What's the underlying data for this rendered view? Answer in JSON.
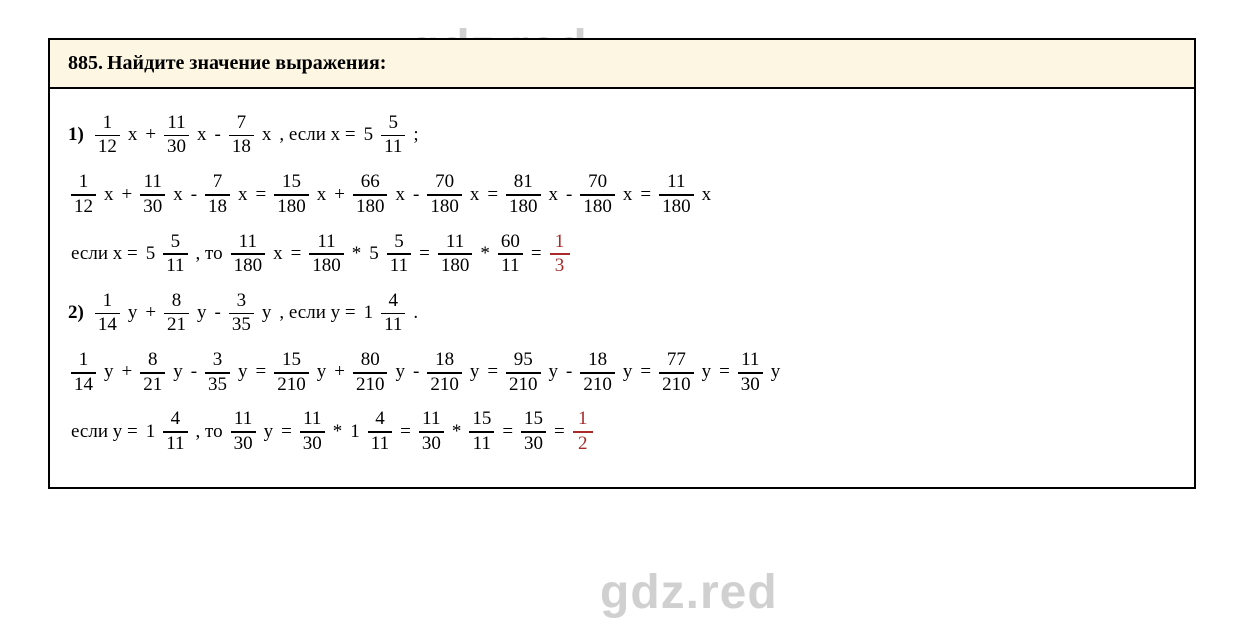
{
  "watermark": "gdz.red",
  "header": {
    "number": "885.",
    "text": "Найдите значение выражения:"
  },
  "colors": {
    "header_bg": "#fdf6e3",
    "border": "#000000",
    "text": "#000000",
    "answer": "#a82a2a",
    "watermark": "rgba(120,120,120,0.35)"
  },
  "problem1": {
    "label": "1)",
    "expr": {
      "f1": {
        "n": "1",
        "d": "12"
      },
      "v1": "x",
      "op1": "+",
      "f2": {
        "n": "11",
        "d": "30"
      },
      "v2": "x",
      "op2": "-",
      "f3": {
        "n": "7",
        "d": "18"
      },
      "v3": "x",
      "cond_prefix": ", если x = ",
      "cond_int": "5",
      "cond_frac": {
        "n": "5",
        "d": "11"
      },
      "semi": ";"
    },
    "simplify": {
      "lhs": [
        {
          "n": "1",
          "d": "12",
          "v": "x"
        },
        {
          "op": "+"
        },
        {
          "n": "11",
          "d": "30",
          "v": "x"
        },
        {
          "op": "-"
        },
        {
          "n": "7",
          "d": "18",
          "v": "x"
        }
      ],
      "eq1": "=",
      "mid": [
        {
          "n": "15",
          "d": "180",
          "v": "x"
        },
        {
          "op": "+"
        },
        {
          "n": "66",
          "d": "180",
          "v": "x"
        },
        {
          "op": "-"
        },
        {
          "n": "70",
          "d": "180",
          "v": "x"
        }
      ],
      "eq2": "=",
      "mid2": [
        {
          "n": "81",
          "d": "180",
          "v": "x"
        },
        {
          "op": "-"
        },
        {
          "n": "70",
          "d": "180",
          "v": "x"
        }
      ],
      "eq3": "=",
      "res": {
        "n": "11",
        "d": "180",
        "v": "x"
      }
    },
    "substitute": {
      "prefix": "если x = ",
      "int": "5",
      "frac": {
        "n": "5",
        "d": "11"
      },
      "then": ", то ",
      "f1": {
        "n": "11",
        "d": "180"
      },
      "v1": "x",
      "eq1": "=",
      "f2": {
        "n": "11",
        "d": "180"
      },
      "star1": "*",
      "int2": "5",
      "f3": {
        "n": "5",
        "d": "11"
      },
      "eq2": "=",
      "f4": {
        "n": "11",
        "d": "180"
      },
      "star2": "*",
      "f5": {
        "n": "60",
        "d": "11"
      },
      "eq3": "=",
      "ans": {
        "n": "1",
        "d": "3"
      }
    }
  },
  "problem2": {
    "label": "2)",
    "expr": {
      "f1": {
        "n": "1",
        "d": "14"
      },
      "v1": "y",
      "op1": "+",
      "f2": {
        "n": "8",
        "d": "21"
      },
      "v2": "y",
      "op2": "-",
      "f3": {
        "n": "3",
        "d": "35"
      },
      "v3": "y",
      "cond_prefix": ", если y = ",
      "cond_int": "1",
      "cond_frac": {
        "n": "4",
        "d": "11"
      },
      "dot": "."
    },
    "simplify": {
      "lhs": [
        {
          "n": "1",
          "d": "14",
          "v": "y"
        },
        {
          "op": "+"
        },
        {
          "n": "8",
          "d": "21",
          "v": "y"
        },
        {
          "op": "-"
        },
        {
          "n": "3",
          "d": "35",
          "v": "y"
        }
      ],
      "eq1": "=",
      "mid": [
        {
          "n": "15",
          "d": "210",
          "v": "y"
        },
        {
          "op": "+"
        },
        {
          "n": "80",
          "d": "210",
          "v": "y"
        },
        {
          "op": "-"
        },
        {
          "n": "18",
          "d": "210",
          "v": "y"
        }
      ],
      "eq2": "=",
      "mid2": [
        {
          "n": "95",
          "d": "210",
          "v": "y"
        },
        {
          "op": "-"
        },
        {
          "n": "18",
          "d": "210",
          "v": "y"
        }
      ],
      "eq3": "=",
      "res": {
        "n": "77",
        "d": "210",
        "v": "y"
      },
      "eq4": "=",
      "res2": {
        "n": "11",
        "d": "30",
        "v": "y"
      }
    },
    "substitute": {
      "prefix": "если y = ",
      "int": "1",
      "frac": {
        "n": "4",
        "d": "11"
      },
      "then": ", то ",
      "f1": {
        "n": "11",
        "d": "30"
      },
      "v1": "y",
      "eq1": "=",
      "f2": {
        "n": "11",
        "d": "30"
      },
      "star1": "*",
      "int2": "1",
      "f3": {
        "n": "4",
        "d": "11"
      },
      "eq2": "=",
      "f4": {
        "n": "11",
        "d": "30"
      },
      "star2": "*",
      "f5": {
        "n": "15",
        "d": "11"
      },
      "eq3": "=",
      "f6": {
        "n": "15",
        "d": "30"
      },
      "eq4": "=",
      "ans": {
        "n": "1",
        "d": "2"
      }
    }
  }
}
